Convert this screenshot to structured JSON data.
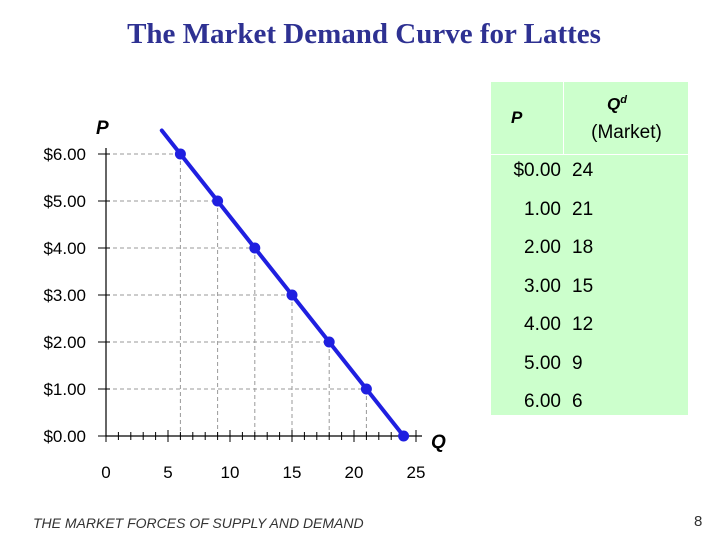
{
  "slide": {
    "title": "The Market Demand Curve for Lattes",
    "footer": "THE MARKET FORCES OF SUPPLY AND DEMAND",
    "page_number": "8"
  },
  "table": {
    "header_price": "P",
    "header_quantity": "Q",
    "header_quantity_superscript": "d",
    "header_quantity_sub": "(Market)",
    "rows": [
      {
        "price": "$0.00",
        "quantity": "24"
      },
      {
        "price": "1.00",
        "quantity": "21"
      },
      {
        "price": "2.00",
        "quantity": "18"
      },
      {
        "price": "3.00",
        "quantity": "15"
      },
      {
        "price": "4.00",
        "quantity": "12"
      },
      {
        "price": "5.00",
        "quantity": "9"
      },
      {
        "price": "6.00",
        "quantity": "6"
      }
    ]
  },
  "chart_data": {
    "type": "line",
    "xlabel": "Q",
    "ylabel": "P",
    "xlim": [
      0,
      25
    ],
    "ylim": [
      0,
      6
    ],
    "x_ticks": [
      "0",
      "5",
      "10",
      "15",
      "20",
      "25"
    ],
    "y_ticks": [
      "$0.00",
      "$1.00",
      "$2.00",
      "$3.00",
      "$4.00",
      "$5.00",
      "$6.00"
    ],
    "points": [
      {
        "x": 6,
        "y": 6
      },
      {
        "x": 9,
        "y": 5
      },
      {
        "x": 12,
        "y": 4
      },
      {
        "x": 15,
        "y": 3
      },
      {
        "x": 18,
        "y": 2
      },
      {
        "x": 21,
        "y": 1
      },
      {
        "x": 24,
        "y": 0
      }
    ],
    "curve_start": {
      "x": 4.5,
      "y": 6.5
    },
    "colors": {
      "curve": "#1f1fe0",
      "title": "#2e3192",
      "table_bg": "#ccffcc",
      "guides": "#999999"
    }
  }
}
